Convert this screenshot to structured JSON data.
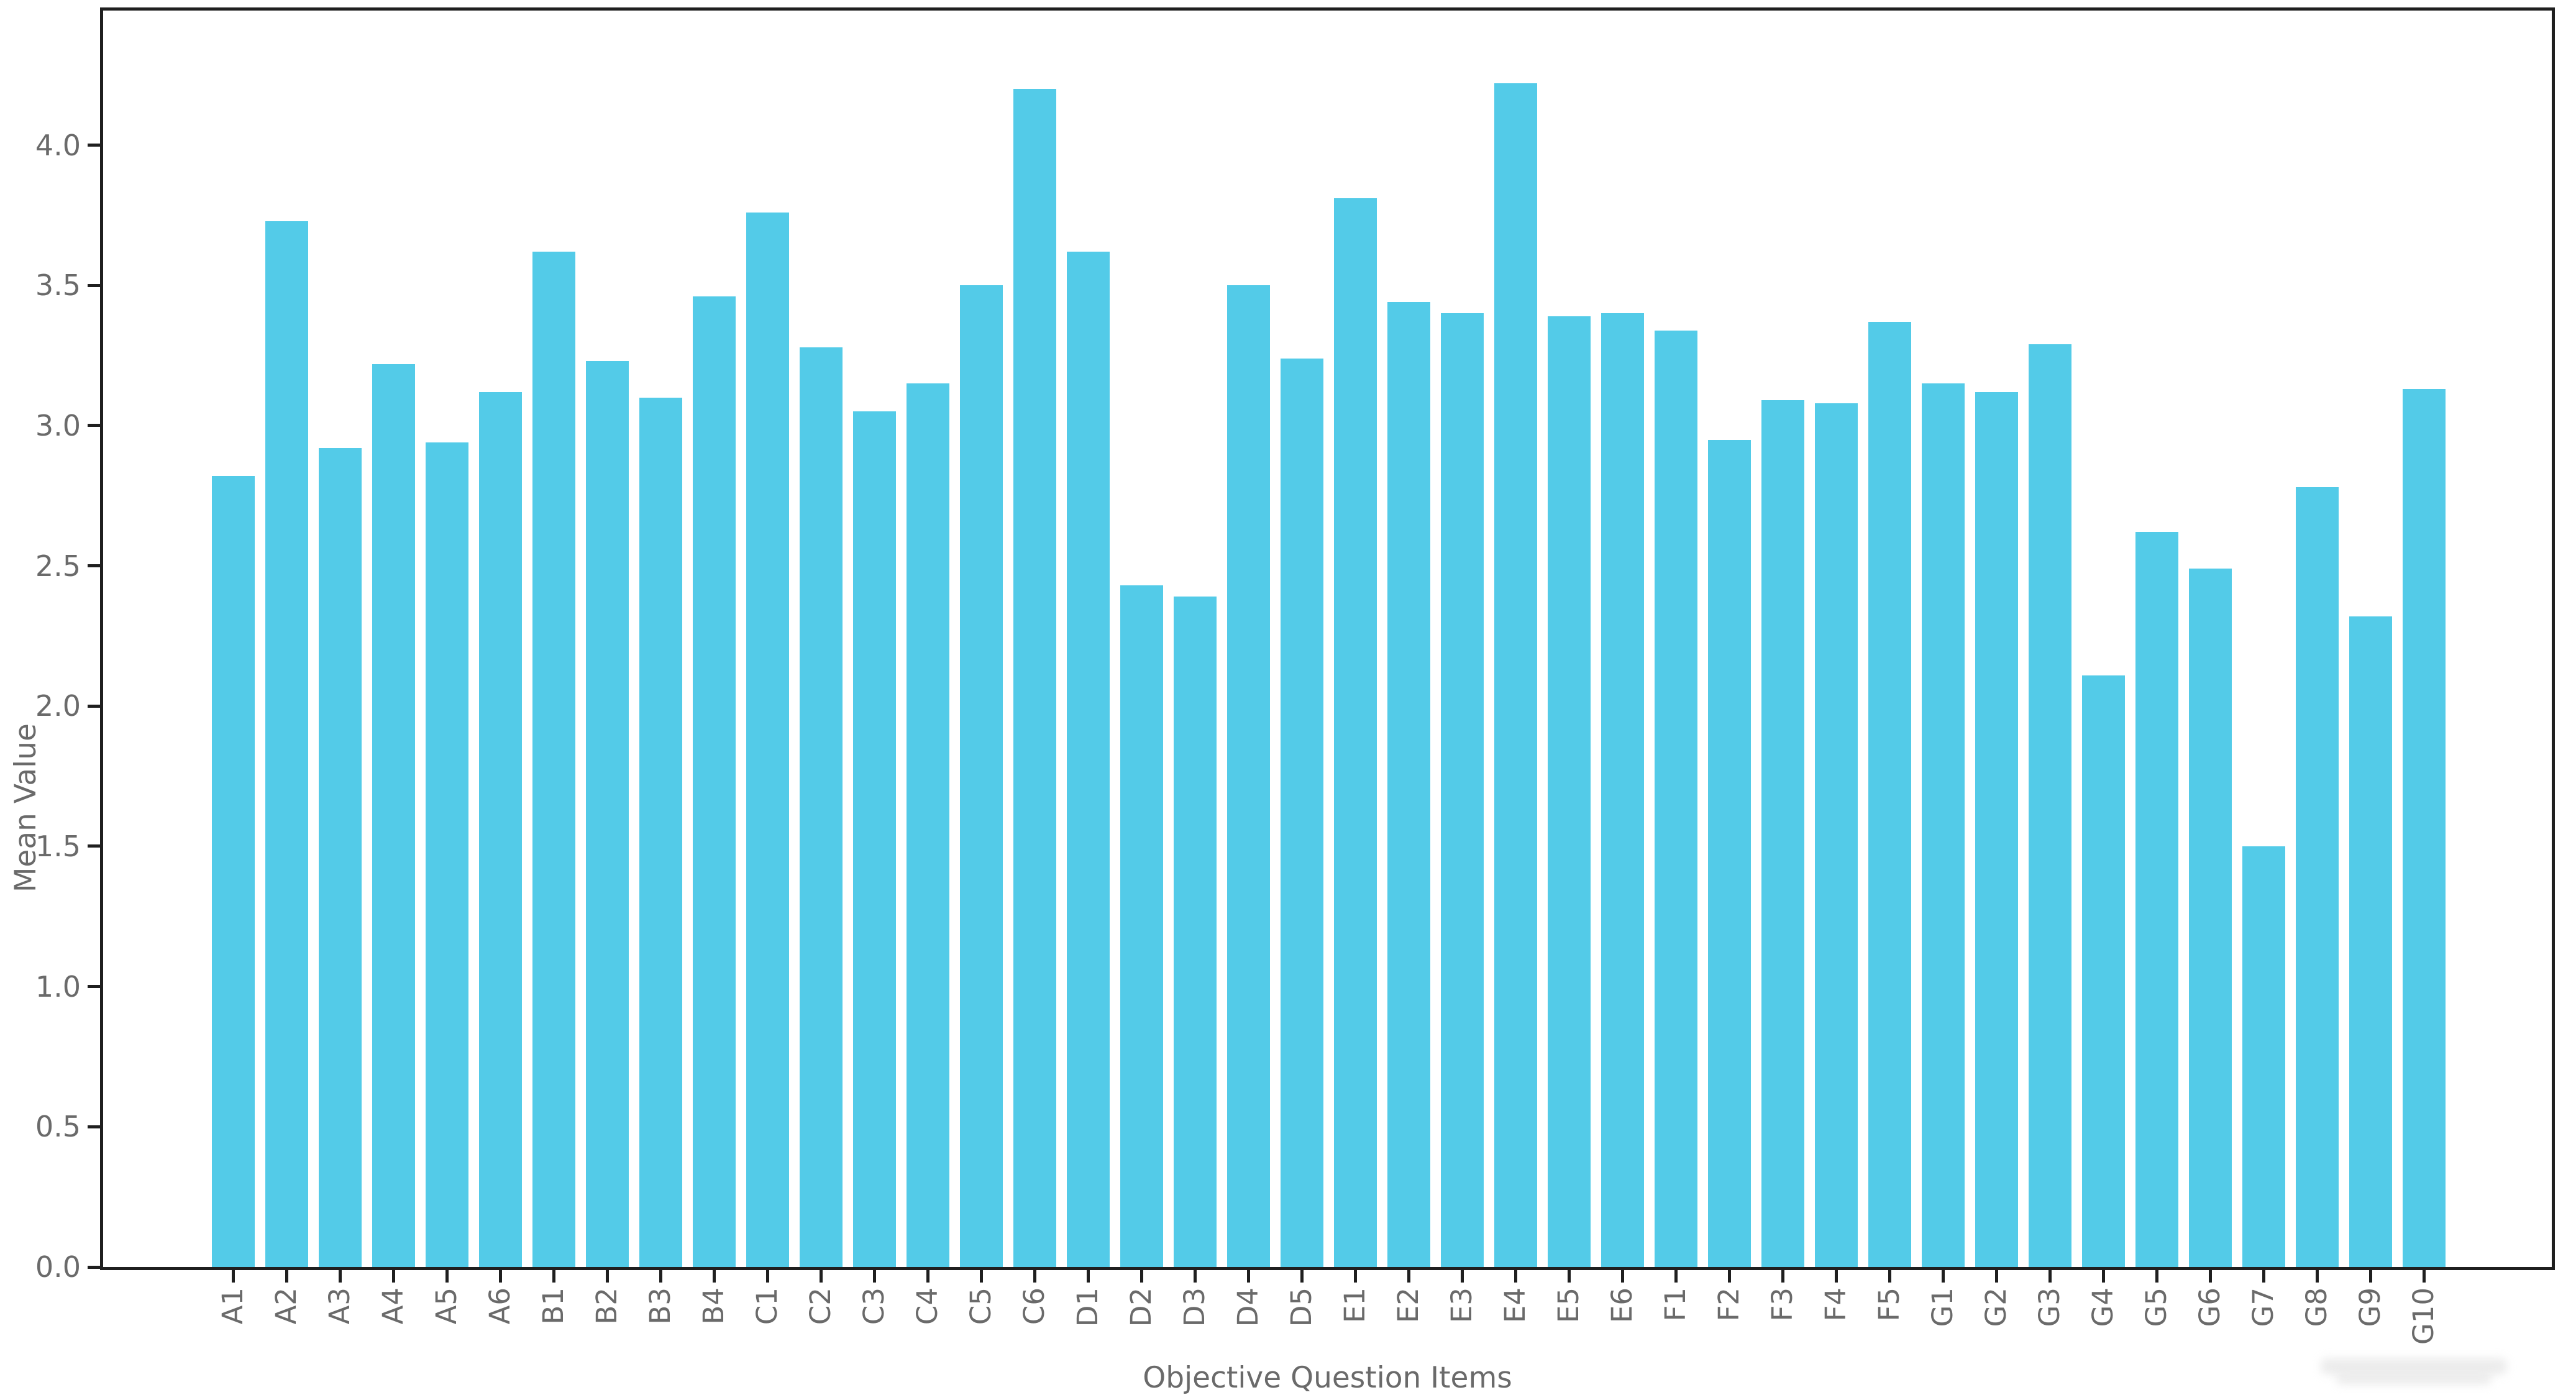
{
  "chart_data": {
    "type": "bar",
    "title": "",
    "xlabel": "Objective Question Items",
    "ylabel": "Mean Value",
    "categories": [
      "A1",
      "A2",
      "A3",
      "A4",
      "A5",
      "A6",
      "B1",
      "B2",
      "B3",
      "B4",
      "C1",
      "C2",
      "C3",
      "C4",
      "C5",
      "C6",
      "D1",
      "D2",
      "D3",
      "D4",
      "D5",
      "E1",
      "E2",
      "E3",
      "E4",
      "E5",
      "E6",
      "F1",
      "F2",
      "F3",
      "F4",
      "F5",
      "G1",
      "G2",
      "G3",
      "G4",
      "G5",
      "G6",
      "G7",
      "G8",
      "G9",
      "G10"
    ],
    "values": [
      2.82,
      3.73,
      2.92,
      3.22,
      2.94,
      3.12,
      3.62,
      3.23,
      3.1,
      3.46,
      3.76,
      3.28,
      3.05,
      3.15,
      3.5,
      4.2,
      3.62,
      2.43,
      2.39,
      3.5,
      3.24,
      3.81,
      3.44,
      3.4,
      4.22,
      3.39,
      3.4,
      3.34,
      2.95,
      3.09,
      3.08,
      3.37,
      3.15,
      3.12,
      3.29,
      2.11,
      2.62,
      2.49,
      1.5,
      2.78,
      2.32,
      3.13
    ],
    "y_ticks": [
      "0.0",
      "0.5",
      "1.0",
      "1.5",
      "2.0",
      "2.5",
      "3.0",
      "3.5",
      "4.0"
    ],
    "ylim": [
      0,
      4.48
    ],
    "grid": "off",
    "legend": "none",
    "bar_color": "#53CBE8",
    "axis_color": "#1f1f1f",
    "tick_label_color": "#6a6a6a",
    "background_color": "#ffffff"
  }
}
